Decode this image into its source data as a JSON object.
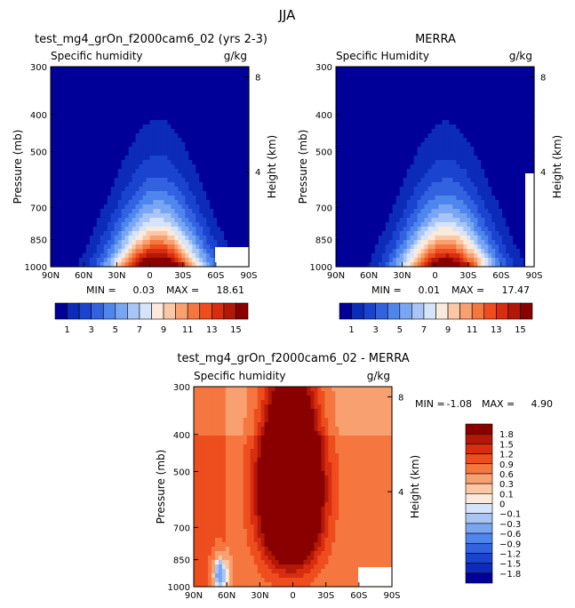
{
  "figure": {
    "title": "JJA"
  },
  "chart_data": [
    {
      "type": "heatmap",
      "panel": "model",
      "title": "test_mg4_grOn_f2000cam6_02 (yrs 2-3)",
      "subtitle_left": "Specific humidity",
      "units": "g/kg",
      "ylabel": "Pressure (mb)",
      "ylabel_right": "Height (km)",
      "x_ticks": [
        "90N",
        "60N",
        "30N",
        "0",
        "30S",
        "60S",
        "90S"
      ],
      "y_ticks": [
        "300",
        "400",
        "500",
        "700",
        "850",
        "1000"
      ],
      "y_right_ticks": [
        "8",
        "4"
      ],
      "levels": [
        1,
        2,
        3,
        4,
        5,
        6,
        7,
        8,
        9,
        10,
        11,
        12,
        13,
        14,
        15
      ],
      "min_label": "MIN =",
      "min_value": "0.03",
      "max_label": "MAX =",
      "max_value": "18.61",
      "peak": 18.61,
      "peak_lat": -7,
      "colorbar": {
        "orientation": "horizontal",
        "labels": [
          "1",
          "3",
          "5",
          "7",
          "9",
          "11",
          "13",
          "15"
        ],
        "colors": [
          "#000099",
          "#0c2bb8",
          "#1a44d0",
          "#3362e0",
          "#4f86ee",
          "#79a6f2",
          "#a8c5f6",
          "#d6e4fa",
          "#fbeadc",
          "#fbc7a4",
          "#f8a06f",
          "#f5773f",
          "#ee4d1e",
          "#d82d10",
          "#b21808",
          "#8a0000"
        ]
      }
    },
    {
      "type": "heatmap",
      "panel": "obs",
      "title": "MERRA",
      "subtitle_left": "Specific Humidity",
      "units": "g/kg",
      "ylabel": "Pressure (mb)",
      "ylabel_right": "Height (km)",
      "x_ticks": [
        "90N",
        "60N",
        "30N",
        "0",
        "30S",
        "60S",
        "90S"
      ],
      "y_ticks": [
        "300",
        "400",
        "500",
        "700",
        "850",
        "1000"
      ],
      "y_right_ticks": [
        "8",
        "4"
      ],
      "levels": [
        1,
        2,
        3,
        4,
        5,
        6,
        7,
        8,
        9,
        10,
        11,
        12,
        13,
        14,
        15
      ],
      "min_label": "MIN =",
      "min_value": "0.01",
      "max_label": "MAX =",
      "max_value": "17.47",
      "peak": 17.47,
      "peak_lat": -10,
      "colorbar": {
        "orientation": "horizontal",
        "labels": [
          "1",
          "3",
          "5",
          "7",
          "9",
          "11",
          "13",
          "15"
        ],
        "colors": [
          "#000099",
          "#0c2bb8",
          "#1a44d0",
          "#3362e0",
          "#4f86ee",
          "#79a6f2",
          "#a8c5f6",
          "#d6e4fa",
          "#fbeadc",
          "#fbc7a4",
          "#f8a06f",
          "#f5773f",
          "#ee4d1e",
          "#d82d10",
          "#b21808",
          "#8a0000"
        ]
      }
    },
    {
      "type": "heatmap",
      "panel": "diff",
      "title": "test_mg4_grOn_f2000cam6_02 - MERRA",
      "subtitle_left": "Specific humidity",
      "units": "g/kg",
      "ylabel": "Pressure (mb)",
      "ylabel_right": "Height (km)",
      "x_ticks": [
        "90N",
        "60N",
        "30N",
        "0",
        "30S",
        "60S",
        "90S"
      ],
      "y_ticks": [
        "300",
        "400",
        "500",
        "700",
        "850",
        "1000"
      ],
      "y_right_ticks": [
        "8",
        "4"
      ],
      "levels": [
        -1.8,
        -1.5,
        -1.2,
        -0.9,
        -0.6,
        -0.3,
        -0.1,
        0,
        0.1,
        0.3,
        0.6,
        0.9,
        1.2,
        1.5,
        1.8
      ],
      "min_label": "MIN =",
      "min_value": "-1.08",
      "max_label": "MAX =",
      "max_value": "4.90",
      "colorbar": {
        "orientation": "vertical",
        "labels": [
          "1.8",
          "1.5",
          "1.2",
          "0.9",
          "0.6",
          "0.3",
          "0.1",
          "0",
          "−0.1",
          "−0.3",
          "−0.6",
          "−0.9",
          "−1.2",
          "−1.5",
          "−1.8"
        ],
        "colors": [
          "#8a0000",
          "#b21808",
          "#d82d10",
          "#ee4d1e",
          "#f5773f",
          "#f8a06f",
          "#fbc7a4",
          "#fbeadc",
          "#d6e4fa",
          "#a8c5f6",
          "#79a6f2",
          "#4f86ee",
          "#3362e0",
          "#1a44d0",
          "#0c2bb8",
          "#000099"
        ]
      }
    }
  ]
}
